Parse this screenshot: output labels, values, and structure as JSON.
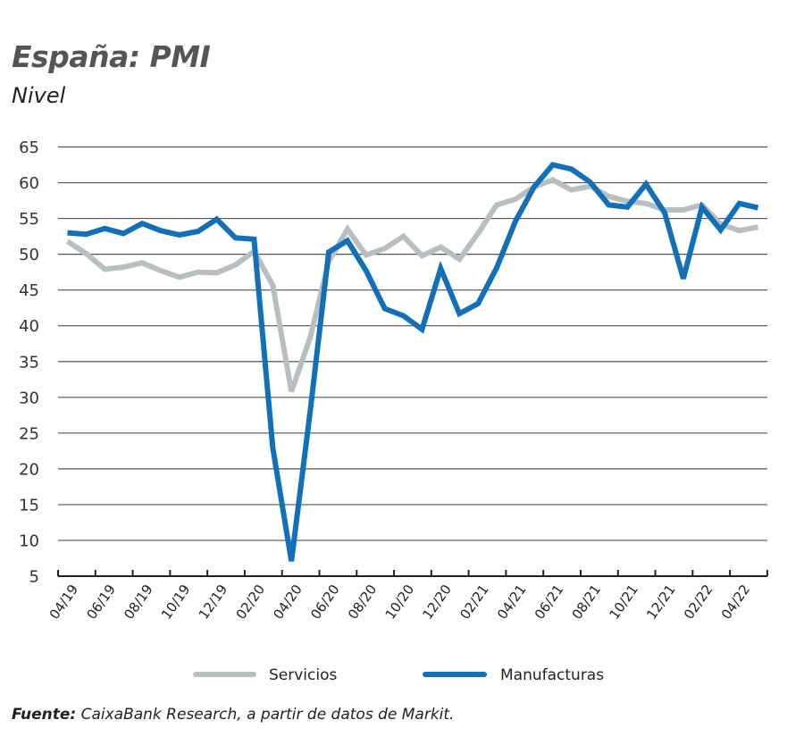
{
  "header": {
    "title": "España: PMI",
    "subtitle": "Nivel"
  },
  "source": {
    "label": "Fuente:",
    "text": " CaixaBank Research, a partir de datos de Markit."
  },
  "colors": {
    "servicios": "#B8BFC3",
    "manufacturas": "#1170B8",
    "grid": "#555555",
    "axis": "#222222"
  },
  "chart_data": {
    "type": "line",
    "title": "España: PMI",
    "subtitle": "Nivel",
    "xlabel": "",
    "ylabel": "",
    "ylim": [
      5,
      65
    ],
    "yticks": [
      65,
      60,
      55,
      50,
      45,
      40,
      35,
      30,
      25,
      20,
      15,
      10,
      5
    ],
    "grid": true,
    "legend_position": "bottom",
    "x": [
      "04/19",
      "05/19",
      "06/19",
      "07/19",
      "08/19",
      "09/19",
      "10/19",
      "11/19",
      "12/19",
      "01/20",
      "02/20",
      "03/20",
      "04/20",
      "05/20",
      "06/20",
      "07/20",
      "08/20",
      "09/20",
      "10/20",
      "11/20",
      "12/20",
      "01/21",
      "02/21",
      "03/21",
      "04/21",
      "05/21",
      "06/21",
      "07/21",
      "08/21",
      "09/21",
      "10/21",
      "11/21",
      "12/21",
      "01/22",
      "02/22",
      "03/22",
      "04/22",
      "05/22"
    ],
    "xtick_labels": [
      "04/19",
      "06/19",
      "08/19",
      "10/19",
      "12/19",
      "02/20",
      "04/20",
      "06/20",
      "08/20",
      "10/20",
      "12/20",
      "02/21",
      "04/21",
      "06/21",
      "08/21",
      "10/21",
      "12/21",
      "02/22",
      "04/22"
    ],
    "series": [
      {
        "name": "Servicios",
        "color": "#B8BFC3",
        "values": [
          51.8,
          50.1,
          47.9,
          48.2,
          48.8,
          47.7,
          46.8,
          47.5,
          47.4,
          48.5,
          50.4,
          45.7,
          30.8,
          38.3,
          49.0,
          53.5,
          49.9,
          50.8,
          52.5,
          49.8,
          51.0,
          49.3,
          52.9,
          56.9,
          57.7,
          59.4,
          60.4,
          59.0,
          59.5,
          58.1,
          57.4,
          57.1,
          56.2,
          56.2,
          56.9,
          54.2,
          53.3,
          53.8
        ]
      },
      {
        "name": "Manufacturas",
        "color": "#1170B8",
        "values": [
          53.0,
          52.8,
          53.6,
          52.9,
          54.3,
          53.3,
          52.7,
          53.2,
          54.9,
          52.3,
          52.1,
          23.0,
          7.1,
          27.9,
          50.3,
          51.9,
          47.7,
          42.4,
          41.4,
          39.5,
          48.0,
          41.7,
          43.1,
          48.1,
          54.6,
          59.4,
          62.5,
          61.9,
          60.1,
          56.9,
          56.6,
          59.8,
          55.8,
          46.6,
          56.6,
          53.4,
          57.1,
          56.5
        ]
      }
    ]
  }
}
